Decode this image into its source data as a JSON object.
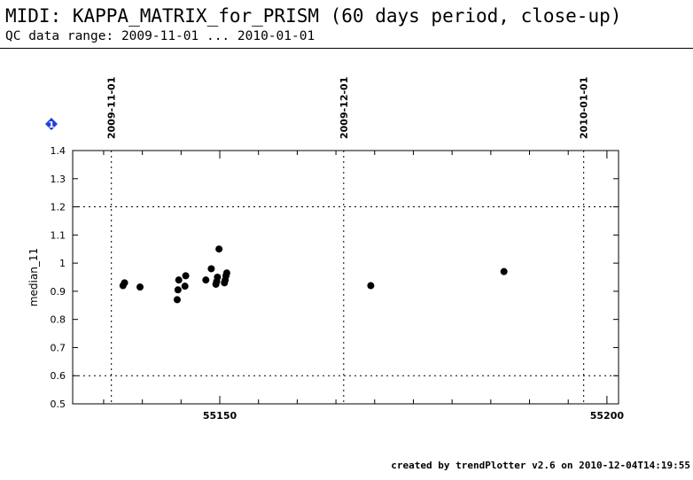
{
  "header": {
    "title": "MIDI: KAPPA_MATRIX_for_PRISM (60 days period, close-up)",
    "subtitle": "QC data range: 2009-11-01 ... 2010-01-01"
  },
  "badge": {
    "label": "1",
    "color": "#1f3fe0"
  },
  "footer": "created by trendPlotter v2.6 on 2010-12-04T14:19:55",
  "chart_data": {
    "type": "scatter",
    "title": "",
    "xlabel": "",
    "ylabel": "median_11",
    "xlim": [
      55131,
      55201.5
    ],
    "ylim": [
      0.5,
      1.4
    ],
    "yticks": [
      0.5,
      0.6,
      0.7,
      0.8,
      0.9,
      1.0,
      1.1,
      1.2,
      1.3,
      1.4
    ],
    "ytick_labels": [
      "0.5",
      "0.6",
      "0.7",
      "0.8",
      "0.9",
      "1",
      "1.1",
      "1.2",
      "1.3",
      "1.4"
    ],
    "xticks_labeled": [
      55150,
      55200
    ],
    "xtick_labels": [
      "55150",
      "55200"
    ],
    "x_minor_step": 5,
    "grid_y": [
      0.6,
      1.2
    ],
    "date_markers": [
      {
        "x": 55136,
        "label": "2009-11-01"
      },
      {
        "x": 55166,
        "label": "2009-12-01"
      },
      {
        "x": 55197,
        "label": "2010-01-01"
      }
    ],
    "marker_color": "#000000",
    "series": [
      {
        "x": [
          55137.5,
          55137.7,
          55139.7,
          55144.5,
          55144.6,
          55144.7,
          55145.5,
          55145.6,
          55148.2,
          55148.9,
          55149.5,
          55149.6,
          55149.7,
          55149.9,
          55150.6,
          55150.7,
          55150.8,
          55150.9,
          55169.5,
          55186.7
        ],
        "y": [
          0.92,
          0.93,
          0.915,
          0.87,
          0.905,
          0.94,
          0.918,
          0.955,
          0.94,
          0.98,
          0.925,
          0.935,
          0.95,
          1.05,
          0.93,
          0.94,
          0.955,
          0.965,
          0.92,
          0.97
        ]
      }
    ]
  }
}
